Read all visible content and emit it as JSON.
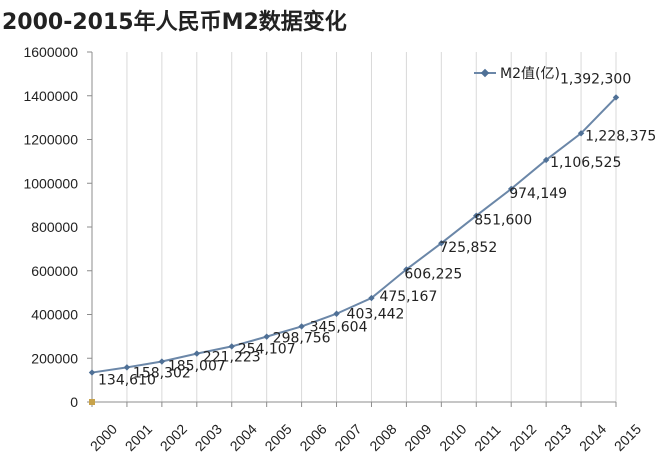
{
  "chart_data": {
    "type": "line",
    "title": "2000-2015年人民币M2数据变化",
    "x": [
      "2000",
      "2001",
      "2002",
      "2003",
      "2004",
      "2005",
      "2006",
      "2007",
      "2008",
      "2009",
      "2010",
      "2011",
      "2012",
      "2013",
      "2014",
      "2015"
    ],
    "series": [
      {
        "name": "M2值(亿)",
        "values": [
          134610,
          158302,
          185007,
          221223,
          254107,
          298756,
          345604,
          403442,
          475167,
          606225,
          725852,
          851600,
          974149,
          1106525,
          1228375,
          1392300
        ]
      }
    ],
    "data_labels": [
      "134,610",
      "158,302",
      "185,007",
      "221,223",
      "254,107",
      "298,756",
      "345,604",
      "403,442",
      "475,167",
      "606,225",
      "725,852",
      "851,600",
      "974,149",
      "1,106,525",
      "1,228,375",
      "1,392,300"
    ],
    "ylim": [
      0,
      1600000
    ],
    "yticks": [
      0,
      200000,
      400000,
      600000,
      800000,
      1000000,
      1200000,
      1400000,
      1600000
    ],
    "grid": "vertical",
    "legend_position": "top-right",
    "colors": {
      "line": "#6b87a8",
      "marker": "#4f7096",
      "grid": "#d9d9d9",
      "axis": "#8c8c8c",
      "origin_marker": "#c7a24a"
    }
  }
}
